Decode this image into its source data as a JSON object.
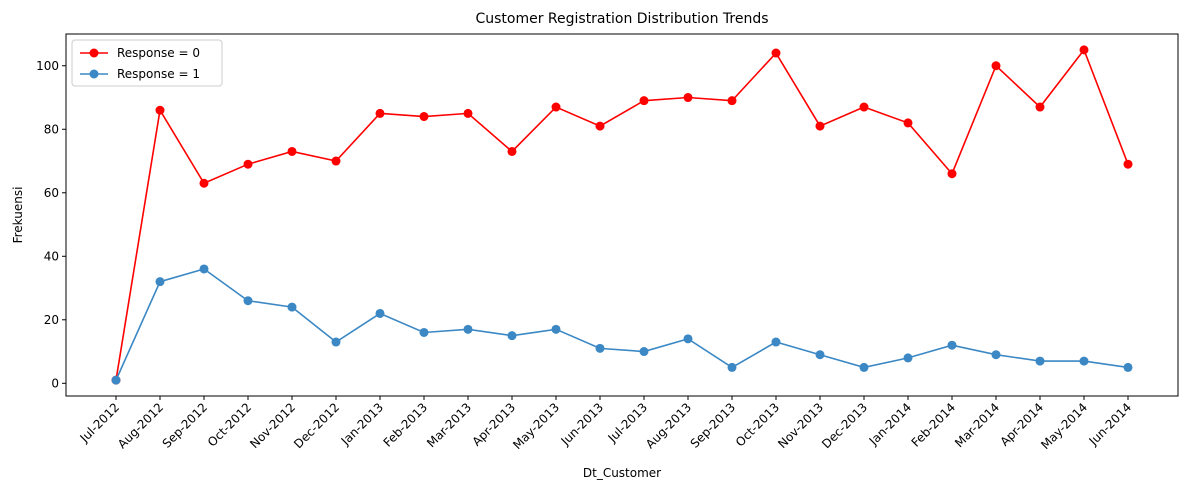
{
  "chart_data": {
    "type": "line",
    "title": "Customer Registration Distribution Trends",
    "xlabel": "Dt_Customer",
    "ylabel": "Frekuensi",
    "ylim": [
      -4,
      110
    ],
    "yticks": [
      0,
      20,
      40,
      60,
      80,
      100
    ],
    "grid": false,
    "legend_position": "top-left",
    "categories": [
      "Jul-2012",
      "Aug-2012",
      "Sep-2012",
      "Oct-2012",
      "Nov-2012",
      "Dec-2012",
      "Jan-2013",
      "Feb-2013",
      "Mar-2013",
      "Apr-2013",
      "May-2013",
      "Jun-2013",
      "Jul-2013",
      "Aug-2013",
      "Sep-2013",
      "Oct-2013",
      "Nov-2013",
      "Dec-2013",
      "Jan-2014",
      "Feb-2014",
      "Mar-2014",
      "Apr-2014",
      "May-2014",
      "Jun-2014"
    ],
    "series": [
      {
        "name": "Response = 0",
        "color": "#ff0000",
        "values": [
          1,
          86,
          63,
          69,
          73,
          70,
          85,
          84,
          85,
          73,
          87,
          81,
          89,
          90,
          89,
          104,
          81,
          87,
          82,
          66,
          100,
          87,
          105,
          69
        ]
      },
      {
        "name": "Response = 1",
        "color": "#3b88c4",
        "values": [
          1,
          32,
          36,
          26,
          24,
          13,
          22,
          16,
          17,
          15,
          17,
          11,
          10,
          14,
          5,
          13,
          9,
          5,
          8,
          12,
          9,
          7,
          7,
          5
        ]
      }
    ]
  }
}
